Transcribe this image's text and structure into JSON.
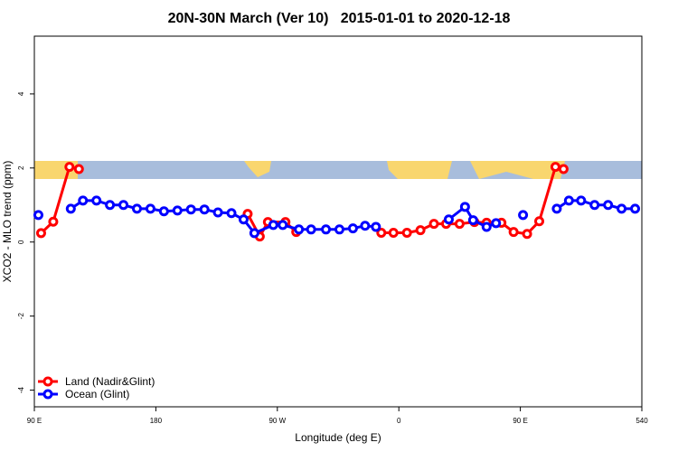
{
  "chart_data": {
    "type": "line",
    "title": "20N-30N March (Ver 10)   2015-01-01 to 2020-12-18",
    "x_label": "Longitude (deg E)",
    "y_label": "XCO2 - MLO trend (ppm)",
    "xlim": [
      90,
      540
    ],
    "ylim": [
      -4.45,
      5.56
    ],
    "xticks": [
      {
        "value": 90,
        "label": "90 E"
      },
      180,
      {
        "value": 270,
        "label": "90 W"
      },
      {
        "value": 360,
        "label": "0"
      },
      {
        "value": 450,
        "label": "90 E"
      },
      540
    ],
    "yticks": [
      4,
      2,
      0,
      -2,
      -4
    ],
    "legend": "bottom-left",
    "series": [
      {
        "name": "Land (Nadir&Glint)",
        "color": "#ff0000",
        "x": [
          95,
          104,
          116,
          123,
          185,
          248,
          257,
          263,
          276,
          284,
          315,
          347,
          356,
          366,
          376,
          386,
          395,
          405,
          416,
          425,
          436,
          445,
          455,
          464,
          476,
          482
        ],
        "values": [
          0.24,
          0.55,
          2.03,
          1.97,
          null,
          0.76,
          0.15,
          0.54,
          0.54,
          0.27,
          null,
          0.25,
          0.25,
          0.25,
          0.32,
          0.49,
          0.49,
          0.49,
          0.54,
          0.52,
          0.52,
          0.27,
          0.22,
          0.56,
          2.03,
          1.97
        ]
      },
      {
        "name": "Ocean (Glint)",
        "color": "#0000ff",
        "x": [
          93,
          105,
          117,
          126,
          136,
          146,
          156,
          166,
          176,
          186,
          196,
          206,
          216,
          226,
          236,
          245,
          253,
          267,
          274,
          286,
          295,
          306,
          316,
          326,
          335,
          343,
          370,
          397,
          409,
          415,
          425,
          432,
          442,
          452,
          465,
          477,
          486,
          495,
          505,
          515,
          525,
          535
        ],
        "values": [
          0.73,
          null,
          0.9,
          1.12,
          1.12,
          1.0,
          1.0,
          0.9,
          0.9,
          0.83,
          0.85,
          0.88,
          0.88,
          0.8,
          0.78,
          0.61,
          0.24,
          0.46,
          0.46,
          0.34,
          0.34,
          0.34,
          0.34,
          0.37,
          0.44,
          0.41,
          null,
          0.61,
          0.95,
          0.59,
          0.41,
          0.51,
          null,
          0.73,
          null,
          0.9,
          1.12,
          1.12,
          1.0,
          1.0,
          0.9,
          0.9
        ]
      }
    ]
  }
}
